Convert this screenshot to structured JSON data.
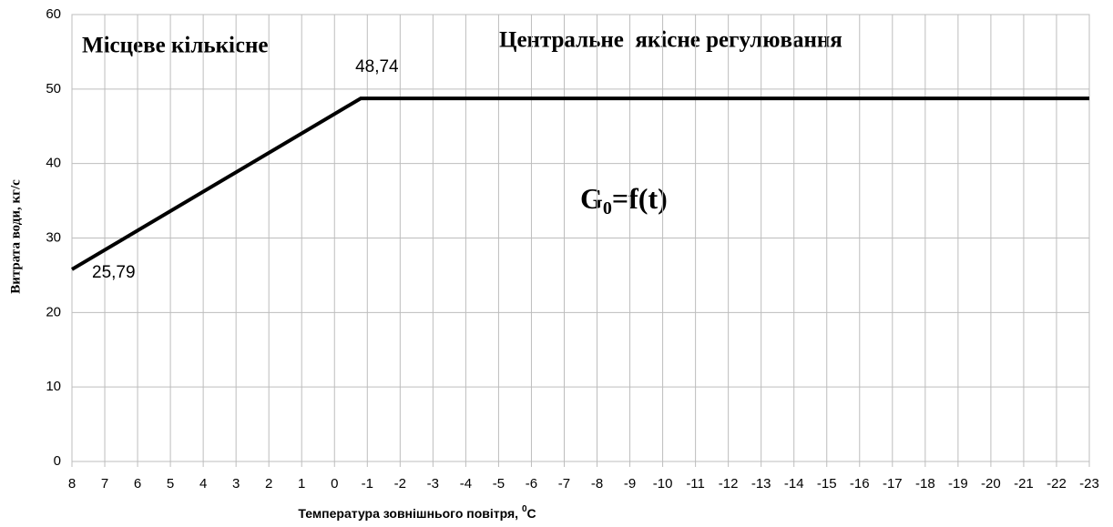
{
  "chart_data": {
    "type": "line",
    "x_label_parts": [
      "Температура зовнішнього повітря, ",
      "0",
      "C"
    ],
    "y_label": "Витрата води, кг/с",
    "annotations": [
      "Місцеве кількісне",
      "Центральне  якісне регулювання"
    ],
    "formula_parts": [
      "G",
      "0",
      "=f(t)"
    ],
    "x": [
      8,
      -0.8,
      -23
    ],
    "series": [
      {
        "name": "G0",
        "color": "#000000",
        "values": [
          25.79,
          48.74,
          48.74
        ],
        "value_labels": [
          "25,79",
          "48,74",
          null
        ]
      }
    ],
    "xlim": [
      8,
      -23
    ],
    "xticks": [
      8,
      7,
      6,
      5,
      4,
      3,
      2,
      1,
      0,
      -1,
      -2,
      -3,
      -4,
      -5,
      -6,
      -7,
      -8,
      -9,
      -10,
      -11,
      -12,
      -13,
      -14,
      -15,
      -16,
      -17,
      -18,
      -19,
      -20,
      -21,
      -22,
      -23
    ],
    "ylim": [
      0,
      60
    ],
    "yticks": [
      0,
      10,
      20,
      30,
      40,
      50,
      60
    ],
    "grid": true
  }
}
